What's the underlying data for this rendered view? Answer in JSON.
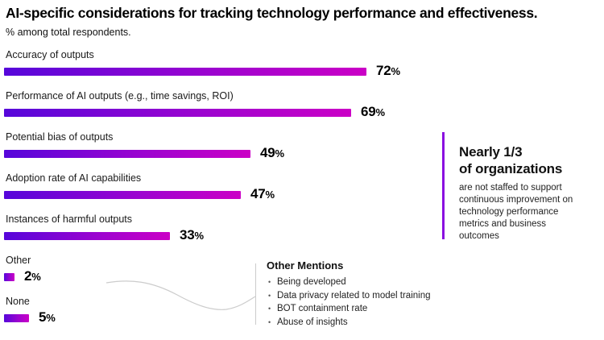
{
  "header": {
    "title": "AI-specific considerations for tracking technology performance and effectiveness.",
    "subtitle": "% among total respondents."
  },
  "chart_data": {
    "type": "bar",
    "orientation": "horizontal",
    "title": "AI-specific considerations for tracking technology performance and effectiveness.",
    "subtitle": "% among total respondents.",
    "categories": [
      "Accuracy of outputs",
      "Performance of AI outputs (e.g., time savings, ROI)",
      "Potential bias of outputs",
      "Adoption rate of AI capabilities",
      "Instances of harmful outputs",
      "Other",
      "None"
    ],
    "values": [
      72,
      69,
      49,
      47,
      33,
      2,
      5
    ],
    "value_suffix": "%",
    "xlim": [
      0,
      100
    ],
    "grid": false,
    "bar_gradient_start": "#5606da",
    "bar_gradient_mid": "#9a04d0",
    "bar_gradient_end": "#cb00c6"
  },
  "other_mentions": {
    "heading": "Other Mentions",
    "items": [
      "Being developed",
      "Data privacy related to model training",
      "BOT containment rate",
      "Abuse of insights"
    ]
  },
  "callout": {
    "heading_line1": "Nearly 1/3",
    "heading_line2": "of organizations",
    "body": "are not staffed to support continuous improvement on technology performance metrics and business outcomes",
    "accent_color": "#8a0fe0"
  },
  "decor": {
    "connector_color": "#cccccc"
  }
}
